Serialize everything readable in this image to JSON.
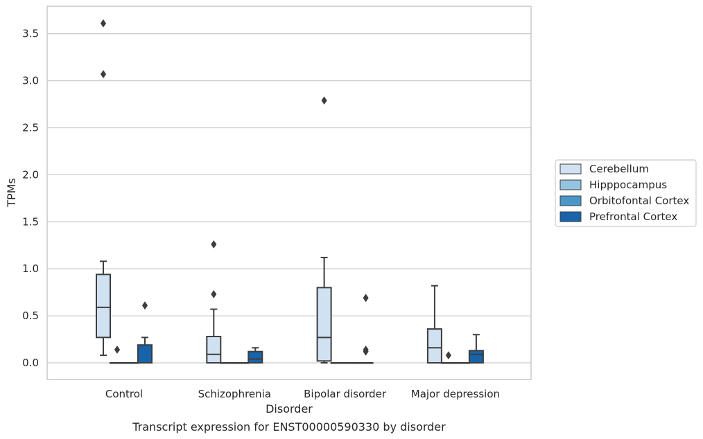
{
  "chart_data": {
    "type": "box",
    "title": "",
    "caption": "Transcript expression for ENST00000590330 by disorder",
    "xlabel": "Disorder",
    "ylabel": "TPMs",
    "ylim": [
      -0.18,
      3.8
    ],
    "yticks": [
      0.0,
      0.5,
      1.0,
      1.5,
      2.0,
      2.5,
      3.0,
      3.5
    ],
    "ytick_labels": [
      "0.0",
      "0.5",
      "1.0",
      "1.5",
      "2.0",
      "2.5",
      "3.0",
      "3.5"
    ],
    "categories": [
      "Control",
      "Schizophrenia",
      "Bipolar disorder",
      "Major depression"
    ],
    "grid": "horizontal",
    "legend_position": "right",
    "series": [
      {
        "name": "Cerebellum",
        "color": "#d0e1f2",
        "boxes": [
          {
            "whisker_low": 0.08,
            "q1": 0.27,
            "median": 0.59,
            "q3": 0.94,
            "whisker_high": 1.08,
            "outliers": [
              3.07,
              3.61
            ]
          },
          {
            "whisker_low": 0.0,
            "q1": 0.0,
            "median": 0.09,
            "q3": 0.28,
            "whisker_high": 0.57,
            "outliers": [
              0.73,
              1.26
            ]
          },
          {
            "whisker_low": 0.0,
            "q1": 0.02,
            "median": 0.27,
            "q3": 0.8,
            "whisker_high": 1.12,
            "outliers": [
              2.79
            ]
          },
          {
            "whisker_low": 0.0,
            "q1": 0.0,
            "median": 0.16,
            "q3": 0.36,
            "whisker_high": 0.82,
            "outliers": []
          }
        ]
      },
      {
        "name": "Hipppocampus",
        "color": "#94c4df",
        "boxes": [
          {
            "whisker_low": 0.0,
            "q1": 0.0,
            "median": 0.0,
            "q3": 0.0,
            "whisker_high": 0.0,
            "outliers": [
              0.14
            ]
          },
          {
            "whisker_low": 0.0,
            "q1": 0.0,
            "median": 0.0,
            "q3": 0.0,
            "whisker_high": 0.0,
            "outliers": []
          },
          {
            "whisker_low": 0.0,
            "q1": 0.0,
            "median": 0.0,
            "q3": 0.0,
            "whisker_high": 0.0,
            "outliers": []
          },
          {
            "whisker_low": 0.0,
            "q1": 0.0,
            "median": 0.0,
            "q3": 0.0,
            "whisker_high": 0.0,
            "outliers": [
              0.08
            ]
          }
        ]
      },
      {
        "name": "Orbitofontal Cortex",
        "color": "#4a98c9",
        "boxes": [
          {
            "whisker_low": 0.0,
            "q1": 0.0,
            "median": 0.0,
            "q3": 0.0,
            "whisker_high": 0.0,
            "outliers": []
          },
          {
            "whisker_low": 0.0,
            "q1": 0.0,
            "median": 0.0,
            "q3": 0.0,
            "whisker_high": 0.0,
            "outliers": []
          },
          {
            "whisker_low": 0.0,
            "q1": 0.0,
            "median": 0.0,
            "q3": 0.0,
            "whisker_high": 0.0,
            "outliers": []
          },
          {
            "whisker_low": 0.0,
            "q1": 0.0,
            "median": 0.0,
            "q3": 0.0,
            "whisker_high": 0.0,
            "outliers": []
          }
        ]
      },
      {
        "name": "Prefrontal Cortex",
        "color": "#1764ab",
        "boxes": [
          {
            "whisker_low": 0.0,
            "q1": 0.0,
            "median": 0.0,
            "q3": 0.19,
            "whisker_high": 0.27,
            "outliers": [
              0.61
            ]
          },
          {
            "whisker_low": 0.0,
            "q1": 0.0,
            "median": 0.04,
            "q3": 0.12,
            "whisker_high": 0.16,
            "outliers": []
          },
          {
            "whisker_low": 0.0,
            "q1": 0.0,
            "median": 0.0,
            "q3": 0.0,
            "whisker_high": 0.0,
            "outliers": [
              0.12,
              0.14,
              0.69
            ]
          },
          {
            "whisker_low": 0.0,
            "q1": 0.0,
            "median": 0.09,
            "q3": 0.13,
            "whisker_high": 0.3,
            "outliers": []
          }
        ]
      }
    ]
  }
}
